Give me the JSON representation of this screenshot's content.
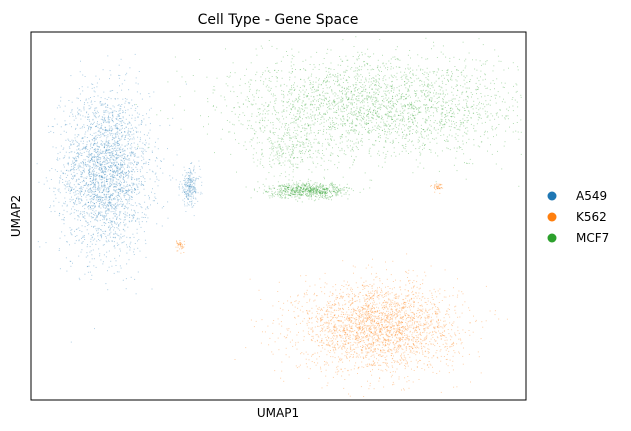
{
  "chart_data": {
    "type": "scatter",
    "title": "Cell Type - Gene Space",
    "xlabel": "UMAP1",
    "ylabel": "UMAP2",
    "x_ticks": [],
    "y_ticks": [],
    "grid": false,
    "legend_position": "right",
    "series": [
      {
        "name": "A549",
        "color": "#1f77b4",
        "clusters": [
          {
            "center": [
              0.15,
              0.62
            ],
            "spread": [
              0.09,
              0.22
            ],
            "density": "high"
          },
          {
            "center": [
              0.32,
              0.58
            ],
            "spread": [
              0.02,
              0.05
            ],
            "density": "low"
          }
        ]
      },
      {
        "name": "K562",
        "color": "#ff7f0e",
        "clusters": [
          {
            "center": [
              0.7,
              0.2
            ],
            "spread": [
              0.16,
              0.12
            ],
            "density": "high"
          },
          {
            "center": [
              0.3,
              0.42
            ],
            "spread": [
              0.01,
              0.02
            ],
            "density": "very-low"
          },
          {
            "center": [
              0.82,
              0.58
            ],
            "spread": [
              0.01,
              0.01
            ],
            "density": "very-low"
          }
        ]
      },
      {
        "name": "MCF7",
        "color": "#2ca02c",
        "clusters": [
          {
            "center": [
              0.7,
              0.8
            ],
            "spread": [
              0.3,
              0.14
            ],
            "density": "high"
          },
          {
            "center": [
              0.56,
              0.57
            ],
            "spread": [
              0.08,
              0.02
            ],
            "density": "medium"
          },
          {
            "center": [
              0.52,
              0.68
            ],
            "spread": [
              0.07,
              0.07
            ],
            "density": "low"
          }
        ]
      }
    ]
  }
}
